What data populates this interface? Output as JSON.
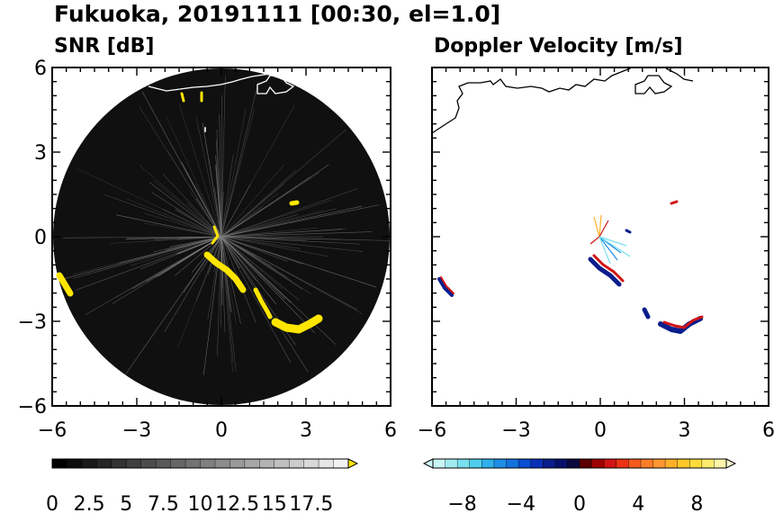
{
  "figure": {
    "title": "Fukuoka, 20191111 [00:30, el=1.0]"
  },
  "chart_data": [
    {
      "type": "heatmap",
      "panel": "left",
      "title": "SNR [dB]",
      "xlim": [
        -6,
        6
      ],
      "ylim": [
        -6,
        6
      ],
      "xticks": [
        -6,
        -3,
        0,
        3,
        6
      ],
      "yticks": [
        -6,
        -3,
        0,
        3,
        6
      ],
      "xtick_labels": [
        "−6",
        "−3",
        "0",
        "3",
        "6"
      ],
      "ytick_labels": [
        "−6",
        "−3",
        "0",
        "3",
        "6"
      ],
      "radar_range": 6,
      "colorbar": {
        "colors": [
          "#000000",
          "#0d0d0d",
          "#1a1a1a",
          "#262626",
          "#333333",
          "#404040",
          "#4d4d4d",
          "#595959",
          "#666666",
          "#737373",
          "#808080",
          "#8c8c8c",
          "#999999",
          "#a6a6a6",
          "#b3b3b3",
          "#c0c0c0",
          "#cccccc",
          "#d9d9d9",
          "#e6e6e6",
          "#f2f2f2"
        ],
        "over_color": "#ffe600",
        "ticks": [
          0,
          2.5,
          5,
          7.5,
          10,
          12.5,
          15,
          17.5
        ],
        "tick_labels": [
          "0",
          "2.5",
          "5",
          "7.5",
          "10",
          "12.5",
          "15",
          "17.5"
        ],
        "min": 0,
        "max": 20
      },
      "echo_color": "#ffe600"
    },
    {
      "type": "heatmap",
      "panel": "right",
      "title": "Doppler Velocity [m/s]",
      "xlim": [
        -6,
        6
      ],
      "ylim": [
        -6,
        6
      ],
      "xticks": [
        -6,
        -3,
        0,
        3,
        6
      ],
      "yticks": [
        -6,
        -3,
        0,
        3,
        6
      ],
      "xtick_labels": [
        "−6",
        "−3",
        "0",
        "3",
        "6"
      ],
      "ytick_labels": [
        "−6",
        "−3",
        "0",
        "3",
        "6"
      ],
      "colorbar": {
        "colors": [
          "#c8f5f5",
          "#a0ecf0",
          "#78e0ee",
          "#50cdee",
          "#30b0ea",
          "#1e8ee6",
          "#1470dc",
          "#0a4ed2",
          "#0a30b8",
          "#0a1e8c",
          "#06126a",
          "#0a0a40",
          "#5a0000",
          "#a00000",
          "#d21414",
          "#eb3214",
          "#f55a1e",
          "#fa7d28",
          "#ff9632",
          "#ffaf28",
          "#ffc828",
          "#ffdc3c",
          "#ffeb6e",
          "#fff5aa"
        ],
        "under_color": "#d2fafa",
        "over_color": "#fffad2",
        "ticks": [
          -8,
          -4,
          0,
          4,
          8
        ],
        "tick_labels": [
          "−8",
          "−4",
          "0",
          "4",
          "8"
        ],
        "min": -10,
        "max": 10
      }
    }
  ]
}
